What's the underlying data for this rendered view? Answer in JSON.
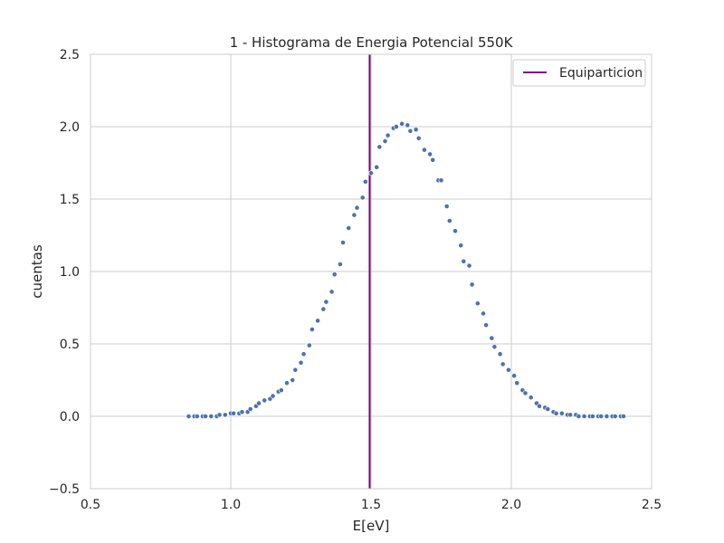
{
  "chart_data": {
    "type": "scatter",
    "title": "1 - Histograma de Energia Potencial 550K",
    "xlabel": "E[eV]",
    "ylabel": "cuentas",
    "xlim": [
      0.5,
      2.5
    ],
    "ylim": [
      -0.5,
      2.5
    ],
    "x_ticks": [
      0.5,
      1.0,
      1.5,
      2.0,
      2.5
    ],
    "x_tick_labels": [
      "0.5",
      "1.0",
      "1.5",
      "2.0",
      "2.5"
    ],
    "y_ticks": [
      -0.5,
      0.0,
      0.5,
      1.0,
      1.5,
      2.0,
      2.5
    ],
    "y_tick_labels": [
      "−0.5",
      "0.0",
      "0.5",
      "1.0",
      "1.5",
      "2.0",
      "2.5"
    ],
    "grid": true,
    "legend_position": "top-right",
    "point_color": "#4c72b0",
    "series": [
      {
        "x": [
          0.85,
          0.87,
          0.88,
          0.9,
          0.91,
          0.93,
          0.95,
          0.96,
          0.98,
          1.0,
          1.01,
          1.03,
          1.04,
          1.06,
          1.07,
          1.09,
          1.1,
          1.12,
          1.14,
          1.15,
          1.17,
          1.18,
          1.2,
          1.22,
          1.23,
          1.25,
          1.26,
          1.28,
          1.29,
          1.31,
          1.33,
          1.34,
          1.36,
          1.37,
          1.39,
          1.4,
          1.42,
          1.44,
          1.45,
          1.47,
          1.48,
          1.5,
          1.52,
          1.53,
          1.55,
          1.56,
          1.58,
          1.59,
          1.61,
          1.63,
          1.64,
          1.66,
          1.67,
          1.69,
          1.71,
          1.72,
          1.74,
          1.75,
          1.77,
          1.78,
          1.8,
          1.82,
          1.83,
          1.85,
          1.86,
          1.88,
          1.9,
          1.91,
          1.93,
          1.94,
          1.96,
          1.97,
          1.99,
          2.01,
          2.02,
          2.04,
          2.05,
          2.07,
          2.09,
          2.1,
          2.12,
          2.13,
          2.15,
          2.16,
          2.18,
          2.2,
          2.21,
          2.23,
          2.24,
          2.26,
          2.28,
          2.29,
          2.31,
          2.32,
          2.34,
          2.36,
          2.37,
          2.39,
          2.4
        ],
        "y": [
          0.0,
          0.0,
          0.0,
          0.0,
          0.0,
          0.0,
          0.0,
          0.01,
          0.01,
          0.02,
          0.02,
          0.02,
          0.03,
          0.03,
          0.05,
          0.07,
          0.09,
          0.11,
          0.12,
          0.14,
          0.17,
          0.18,
          0.23,
          0.25,
          0.32,
          0.37,
          0.43,
          0.49,
          0.6,
          0.66,
          0.74,
          0.79,
          0.86,
          0.98,
          1.05,
          1.2,
          1.3,
          1.39,
          1.44,
          1.51,
          1.62,
          1.68,
          1.72,
          1.86,
          1.9,
          1.94,
          1.99,
          2.0,
          2.02,
          2.01,
          1.97,
          1.98,
          1.92,
          1.84,
          1.81,
          1.77,
          1.63,
          1.63,
          1.45,
          1.35,
          1.28,
          1.18,
          1.07,
          1.04,
          0.91,
          0.78,
          0.71,
          0.63,
          0.54,
          0.48,
          0.43,
          0.36,
          0.32,
          0.28,
          0.23,
          0.18,
          0.16,
          0.13,
          0.09,
          0.07,
          0.06,
          0.05,
          0.03,
          0.02,
          0.02,
          0.01,
          0.01,
          0.01,
          0.0,
          0.0,
          0.0,
          0.0,
          0.0,
          0.0,
          0.0,
          0.0,
          0.0,
          0.0,
          0.0
        ]
      }
    ],
    "vlines": [
      {
        "name": "Equiparticion",
        "x": 1.495,
        "color": "#800080"
      }
    ]
  }
}
